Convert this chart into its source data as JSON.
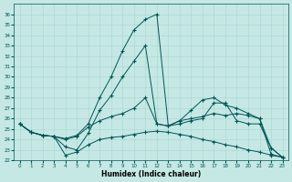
{
  "xlabel": "Humidex (Indice chaleur)",
  "xlim": [
    -0.5,
    23.5
  ],
  "ylim": [
    22,
    37
  ],
  "yticks": [
    22,
    23,
    24,
    25,
    26,
    27,
    28,
    29,
    30,
    31,
    32,
    33,
    34,
    35,
    36
  ],
  "xticks": [
    0,
    1,
    2,
    3,
    4,
    5,
    6,
    7,
    8,
    9,
    10,
    11,
    12,
    13,
    14,
    15,
    16,
    17,
    18,
    19,
    20,
    21,
    22,
    23
  ],
  "background_color": "#c5e8e5",
  "grid_color": "#a8d5d0",
  "line_color": "#005555",
  "lines": [
    {
      "x": [
        0,
        1,
        2,
        3,
        4,
        5,
        6,
        7,
        8,
        9,
        10,
        11,
        12,
        13,
        14,
        15,
        16,
        17,
        18,
        19,
        20,
        21,
        22,
        23
      ],
      "y": [
        25.5,
        24.7,
        24.4,
        24.3,
        24.1,
        24.4,
        25.5,
        28.0,
        30.0,
        32.5,
        34.5,
        35.5,
        36.0,
        25.3,
        25.8,
        26.0,
        26.2,
        26.5,
        26.3,
        26.5,
        26.3,
        26.0,
        22.6,
        22.3
      ]
    },
    {
      "x": [
        0,
        1,
        2,
        3,
        4,
        5,
        6,
        7,
        8,
        9,
        10,
        11,
        12,
        13,
        14,
        15,
        16,
        17,
        18,
        19,
        20,
        21,
        22,
        23
      ],
      "y": [
        25.5,
        24.7,
        24.4,
        24.3,
        23.3,
        23.0,
        24.6,
        26.8,
        28.2,
        30.0,
        31.5,
        33.0,
        25.5,
        25.3,
        25.8,
        26.8,
        27.8,
        28.0,
        27.3,
        27.0,
        26.5,
        26.0,
        23.2,
        22.3
      ]
    },
    {
      "x": [
        0,
        1,
        2,
        3,
        4,
        5,
        6,
        7,
        8,
        9,
        10,
        11,
        12,
        13,
        14,
        15,
        16,
        17,
        18,
        19,
        20,
        21,
        22,
        23
      ],
      "y": [
        25.5,
        24.7,
        24.4,
        24.3,
        24.0,
        24.3,
        25.2,
        25.8,
        26.2,
        26.5,
        27.0,
        28.0,
        25.5,
        25.3,
        25.5,
        25.8,
        26.0,
        27.5,
        27.5,
        25.8,
        25.5,
        25.5,
        23.2,
        22.3
      ]
    },
    {
      "x": [
        0,
        1,
        2,
        3,
        4,
        5,
        6,
        7,
        8,
        9,
        10,
        11,
        12,
        13,
        14,
        15,
        16,
        17,
        18,
        19,
        20,
        21,
        22,
        23
      ],
      "y": [
        25.5,
        24.7,
        24.4,
        24.3,
        22.5,
        22.8,
        23.5,
        24.0,
        24.2,
        24.3,
        24.5,
        24.7,
        24.8,
        24.7,
        24.5,
        24.3,
        24.0,
        23.8,
        23.5,
        23.3,
        23.0,
        22.8,
        22.5,
        22.3
      ]
    }
  ]
}
